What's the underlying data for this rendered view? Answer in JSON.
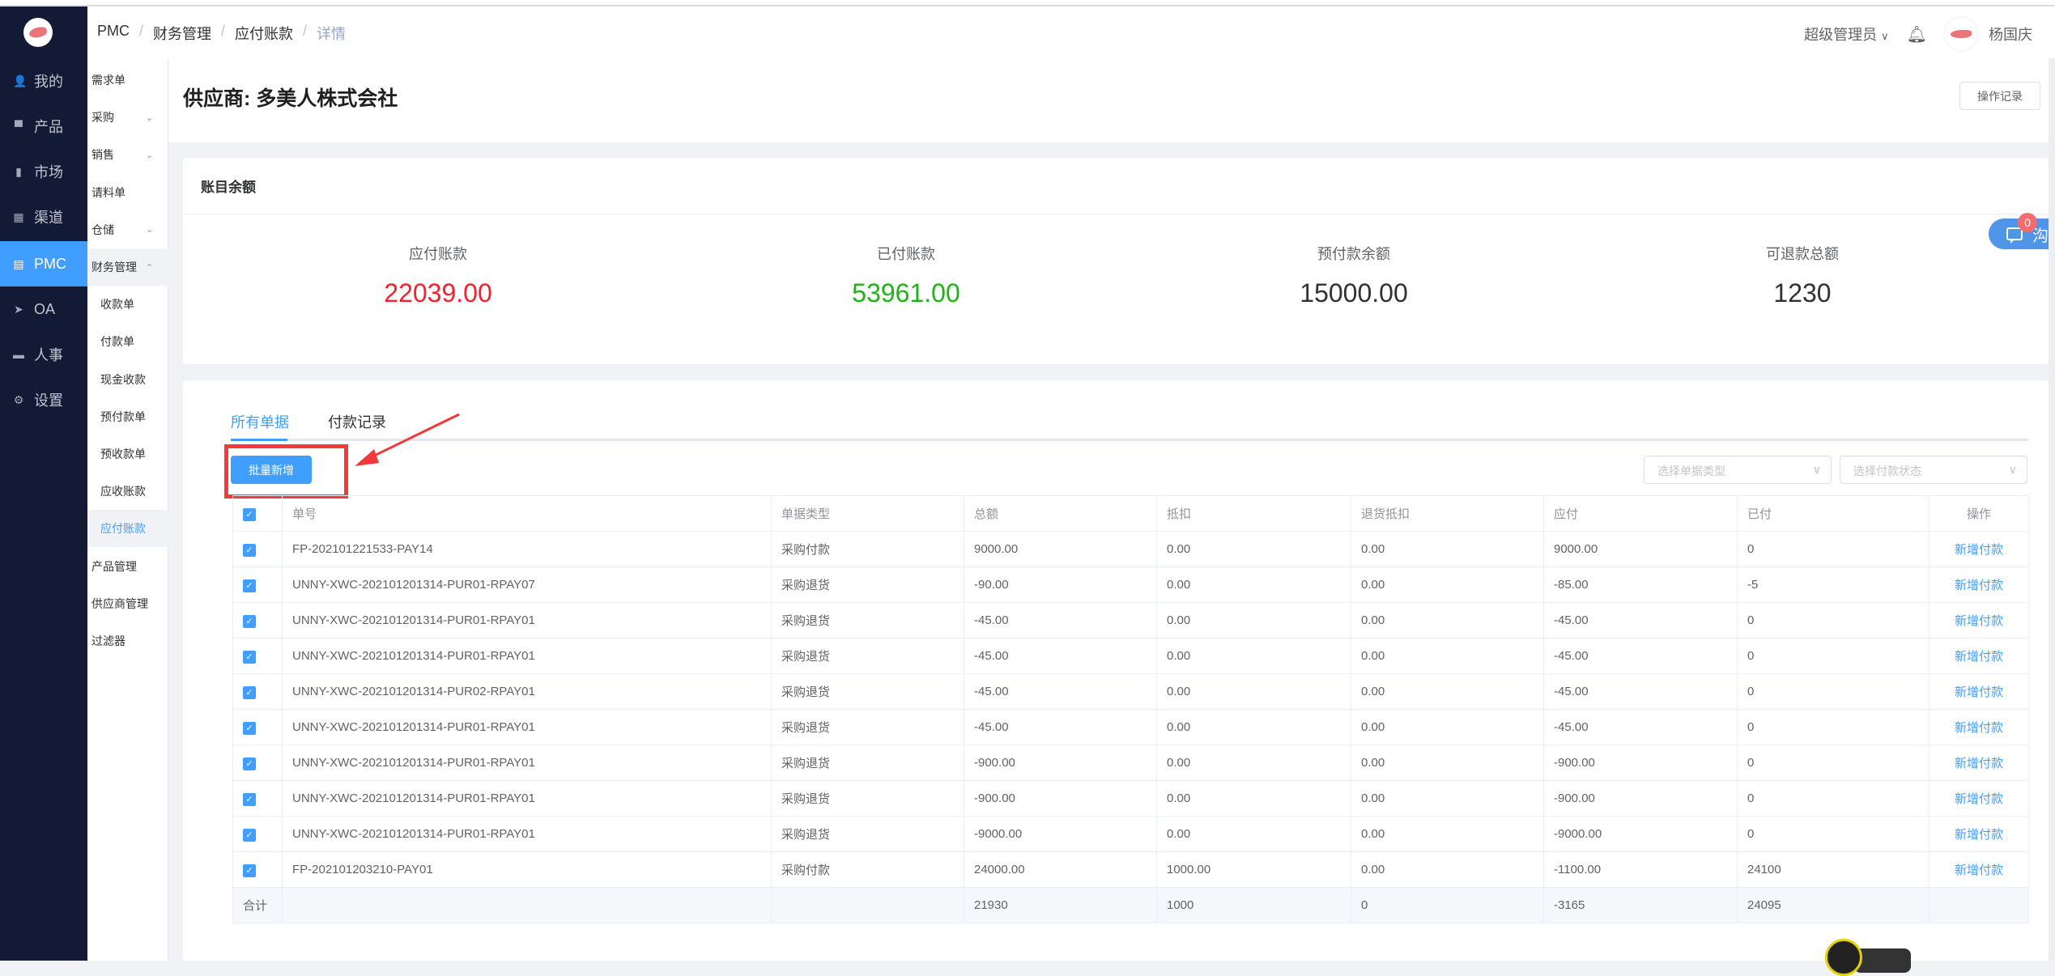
{
  "nav": {
    "items": [
      {
        "label": "我的",
        "icon": "user-icon",
        "glyph": "👤"
      },
      {
        "label": "产品",
        "icon": "briefcase-icon",
        "glyph": "▀"
      },
      {
        "label": "市场",
        "icon": "bar-chart-icon",
        "glyph": "▮"
      },
      {
        "label": "渠道",
        "icon": "grid-icon",
        "glyph": "▦"
      },
      {
        "label": "PMC",
        "icon": "clipboard-icon",
        "glyph": "▤"
      },
      {
        "label": "OA",
        "icon": "paper-plane-icon",
        "glyph": "➤"
      },
      {
        "label": "人事",
        "icon": "monitor-icon",
        "glyph": "▬"
      },
      {
        "label": "设置",
        "icon": "gear-icon",
        "glyph": "⚙"
      }
    ],
    "active": "PMC"
  },
  "header": {
    "breadcrumb": [
      "PMC",
      "财务管理",
      "应付账款",
      "详情"
    ],
    "role": "超级管理员",
    "user": "杨国庆"
  },
  "subnav": {
    "items": [
      {
        "label": "需求单"
      },
      {
        "label": "采购",
        "chevron": "⌄"
      },
      {
        "label": "销售",
        "chevron": "⌄"
      },
      {
        "label": "请料单"
      },
      {
        "label": "仓储",
        "chevron": "⌄"
      },
      {
        "label": "财务管理",
        "chevron": "⌃"
      },
      {
        "label": "收款单"
      },
      {
        "label": "付款单"
      },
      {
        "label": "现金收款"
      },
      {
        "label": "预付款单"
      },
      {
        "label": "预收款单"
      },
      {
        "label": "应收账款"
      },
      {
        "label": "应付账款"
      },
      {
        "label": "产品管理"
      },
      {
        "label": "供应商管理"
      },
      {
        "label": "过滤器"
      }
    ]
  },
  "page": {
    "title": "供应商: 多美人株式会社",
    "log_button": "操作记录"
  },
  "balance": {
    "title": "账目余额",
    "stats": [
      {
        "label": "应付账款",
        "value": "22039.00",
        "color": "#f5222d"
      },
      {
        "label": "已付账款",
        "value": "53961.00",
        "color": "#1fb316"
      },
      {
        "label": "预付款余额",
        "value": "15000.00",
        "color": "#303133"
      },
      {
        "label": "可退款总额",
        "value": "1230",
        "color": "#303133"
      }
    ]
  },
  "docs": {
    "tabs": [
      "所有单据",
      "付款记录"
    ],
    "batch_button": "批量新增",
    "filter_type_placeholder": "选择单据类型",
    "filter_status_placeholder": "选择付款状态",
    "columns": [
      "单号",
      "单据类型",
      "总额",
      "抵扣",
      "退货抵扣",
      "应付",
      "已付",
      "操作"
    ],
    "rows": [
      [
        "FP-202101221533-PAY14",
        "采购付款",
        "9000.00",
        "0.00",
        "0.00",
        "9000.00",
        "0",
        "新增付款"
      ],
      [
        "UNNY-XWC-202101201314-PUR01-RPAY07",
        "采购退货",
        "-90.00",
        "0.00",
        "0.00",
        "-85.00",
        "-5",
        "新增付款"
      ],
      [
        "UNNY-XWC-202101201314-PUR01-RPAY01",
        "采购退货",
        "-45.00",
        "0.00",
        "0.00",
        "-45.00",
        "0",
        "新增付款"
      ],
      [
        "UNNY-XWC-202101201314-PUR01-RPAY01",
        "采购退货",
        "-45.00",
        "0.00",
        "0.00",
        "-45.00",
        "0",
        "新增付款"
      ],
      [
        "UNNY-XWC-202101201314-PUR02-RPAY01",
        "采购退货",
        "-45.00",
        "0.00",
        "0.00",
        "-45.00",
        "0",
        "新增付款"
      ],
      [
        "UNNY-XWC-202101201314-PUR01-RPAY01",
        "采购退货",
        "-45.00",
        "0.00",
        "0.00",
        "-45.00",
        "0",
        "新增付款"
      ],
      [
        "UNNY-XWC-202101201314-PUR01-RPAY01",
        "采购退货",
        "-900.00",
        "0.00",
        "0.00",
        "-900.00",
        "0",
        "新增付款"
      ],
      [
        "UNNY-XWC-202101201314-PUR01-RPAY01",
        "采购退货",
        "-900.00",
        "0.00",
        "0.00",
        "-900.00",
        "0",
        "新增付款"
      ],
      [
        "UNNY-XWC-202101201314-PUR01-RPAY01",
        "采购退货",
        "-9000.00",
        "0.00",
        "0.00",
        "-9000.00",
        "0",
        "新增付款"
      ],
      [
        "FP-202101203210-PAY01",
        "采购付款",
        "24000.00",
        "1000.00",
        "0.00",
        "-1100.00",
        "24100",
        "新增付款"
      ]
    ],
    "summary": {
      "label": "合计",
      "total": "21930",
      "deduct": "1000",
      "return_deduct": "0",
      "payable": "-3165",
      "paid": "24095"
    }
  },
  "chat": {
    "badge": "0",
    "label": "沟"
  },
  "accent": "#409eff"
}
